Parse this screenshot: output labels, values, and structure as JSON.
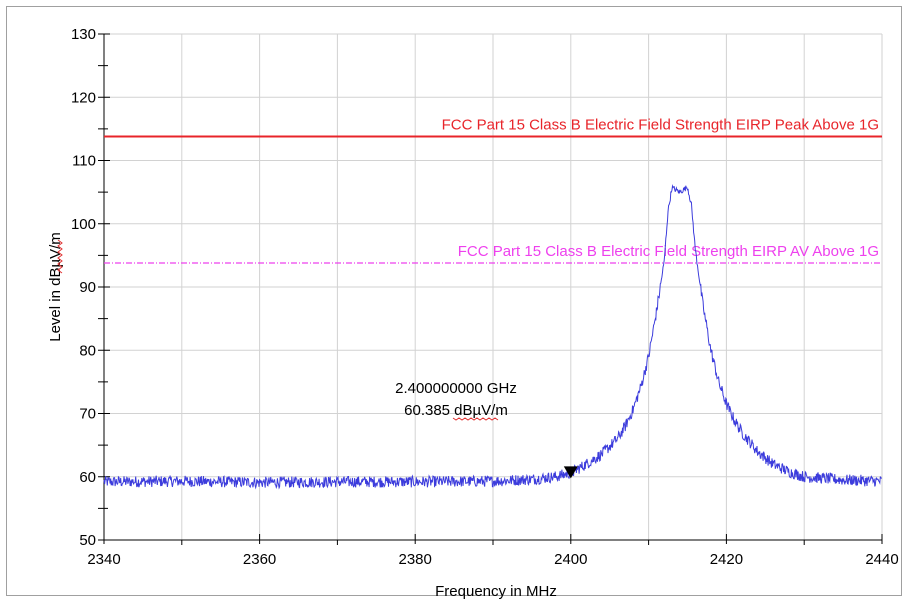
{
  "chart_data": {
    "type": "line",
    "xlabel": "Frequency in MHz",
    "ylabel": "Level in dBµV/m",
    "xlim": [
      2340,
      2440
    ],
    "ylim": [
      50,
      130
    ],
    "x_ticks": [
      "2340",
      "2360",
      "2380",
      "2400",
      "2420",
      "2440"
    ],
    "x_tick_values": [
      2340,
      2360,
      2380,
      2400,
      2420,
      2440
    ],
    "y_ticks": [
      "50",
      "60",
      "70",
      "80",
      "90",
      "100",
      "110",
      "120",
      "130"
    ],
    "y_tick_values": [
      50,
      60,
      70,
      80,
      90,
      100,
      110,
      120,
      130
    ],
    "grid": true,
    "limit_lines": [
      {
        "label": "FCC Part 15 Class B Electric Field Strength EIRP Peak Above 1G",
        "value": 113.8,
        "color": "#e8242a",
        "style": "solid"
      },
      {
        "label": "FCC Part 15 Class B Electric Field Strength EIRP AV Above 1G",
        "value": 93.8,
        "color": "#ee40ee",
        "style": "dashdot"
      }
    ],
    "series": [
      {
        "color": "#3c3cdc",
        "x": [
          2340,
          2350,
          2360,
          2370,
          2380,
          2390,
          2395,
          2398,
          2400,
          2402,
          2404,
          2406,
          2407,
          2408,
          2409,
          2410,
          2411,
          2412,
          2412.5,
          2413,
          2414,
          2415,
          2415.5,
          2416,
          2417,
          2418,
          2419,
          2420,
          2421,
          2422,
          2424,
          2426,
          2428,
          2430,
          2435,
          2440
        ],
        "y": [
          59.2,
          59.3,
          59.1,
          59.2,
          59.2,
          59.3,
          59.6,
          60.0,
          60.6,
          62.0,
          63.6,
          66.0,
          68.0,
          70.6,
          74.2,
          79.0,
          86.0,
          94.0,
          102.0,
          105.7,
          105.0,
          105.8,
          103.0,
          96.0,
          87.0,
          80.0,
          75.0,
          71.5,
          69.0,
          67.0,
          64.0,
          62.0,
          60.8,
          60.0,
          59.5,
          59.3
        ]
      }
    ],
    "marker": {
      "x": 2400,
      "y": 60.385,
      "freq_label": "2.400000000 GHz",
      "level_label": "60.385 dBµV/m"
    }
  }
}
